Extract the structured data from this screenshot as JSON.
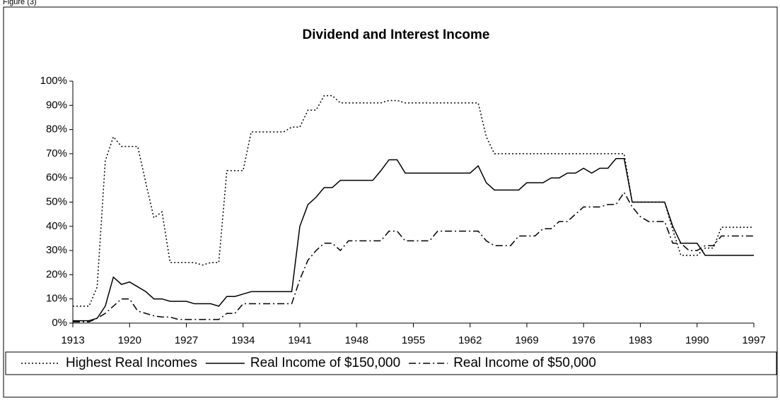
{
  "chart_data": {
    "type": "line",
    "figure_label": "Figure (3)",
    "title": "Dividend and Interest Income",
    "x": [
      1913,
      1914,
      1915,
      1916,
      1917,
      1918,
      1919,
      1920,
      1921,
      1922,
      1923,
      1924,
      1925,
      1926,
      1927,
      1928,
      1929,
      1930,
      1931,
      1932,
      1933,
      1934,
      1935,
      1936,
      1937,
      1938,
      1939,
      1940,
      1941,
      1942,
      1943,
      1944,
      1945,
      1946,
      1947,
      1948,
      1949,
      1950,
      1951,
      1952,
      1953,
      1954,
      1955,
      1956,
      1957,
      1958,
      1959,
      1960,
      1961,
      1962,
      1963,
      1964,
      1965,
      1966,
      1967,
      1968,
      1969,
      1970,
      1971,
      1972,
      1973,
      1974,
      1975,
      1976,
      1977,
      1978,
      1979,
      1980,
      1981,
      1982,
      1983,
      1984,
      1985,
      1986,
      1987,
      1988,
      1989,
      1990,
      1991,
      1992,
      1993,
      1994,
      1995,
      1996,
      1997
    ],
    "series": [
      {
        "name": "Highest Real Incomes",
        "color": "#000000",
        "line_style": "dotted",
        "values": [
          7,
          7,
          7,
          15,
          67,
          77,
          73,
          73,
          73,
          58,
          43.5,
          46,
          25,
          25,
          25,
          25,
          24,
          25,
          25,
          63,
          63,
          63,
          79,
          79,
          79,
          79,
          79,
          81,
          81,
          88,
          88,
          94,
          94,
          91,
          91,
          91,
          91,
          91,
          91,
          92,
          92,
          91,
          91,
          91,
          91,
          91,
          91,
          91,
          91,
          91,
          91,
          77,
          70,
          70,
          70,
          70,
          70,
          70,
          70,
          70,
          70,
          70,
          70,
          70,
          70,
          70,
          70,
          70,
          70,
          50,
          50,
          50,
          50,
          50,
          38.5,
          28,
          28,
          28,
          31,
          31,
          39.6,
          39.6,
          39.6,
          39.6,
          39.6
        ]
      },
      {
        "name": "Real Income of $150,000",
        "color": "#000000",
        "line_style": "solid",
        "values": [
          1,
          1,
          1,
          2,
          7,
          19,
          16,
          17,
          15,
          13,
          10,
          10,
          9,
          9,
          9,
          8,
          8,
          8,
          7,
          11,
          11,
          12,
          13,
          13,
          13,
          13,
          13,
          13,
          40,
          49,
          52,
          56,
          56,
          59,
          59,
          59,
          59,
          59,
          63,
          67.5,
          67.5,
          62,
          62,
          62,
          62,
          62,
          62,
          62,
          62,
          62,
          65,
          58,
          55,
          55,
          55,
          55,
          58,
          58,
          58,
          60,
          60,
          62,
          62,
          64,
          62,
          64,
          64,
          68,
          68,
          50,
          50,
          50,
          50,
          50,
          40,
          33,
          33,
          33,
          28,
          28,
          28,
          28,
          28,
          28,
          28
        ]
      },
      {
        "name": "Real Income of $50,000",
        "color": "#000000",
        "line_style": "dash-dot",
        "values": [
          0.5,
          0.5,
          0.5,
          2,
          4,
          7,
          10,
          10,
          5,
          4,
          3,
          2.5,
          2.5,
          1.5,
          1.5,
          1.5,
          1.5,
          1.5,
          1.5,
          4,
          4,
          8,
          8,
          8,
          8,
          8,
          8,
          8,
          18,
          26,
          30,
          33,
          33,
          30,
          34,
          34,
          34,
          34,
          34,
          38,
          38,
          34,
          34,
          34,
          34,
          38,
          38,
          38,
          38,
          38,
          38,
          34,
          32,
          32,
          32,
          36,
          36,
          36,
          39,
          39,
          42,
          42,
          45,
          48,
          48,
          48,
          49,
          49,
          54,
          48,
          44,
          42,
          42,
          42,
          33,
          33,
          30,
          30,
          32,
          32,
          36,
          36,
          36,
          36,
          36
        ]
      }
    ],
    "xlim": [
      1913,
      1997
    ],
    "xticks": [
      1913,
      1920,
      1927,
      1934,
      1941,
      1948,
      1955,
      1962,
      1969,
      1976,
      1983,
      1990,
      1997
    ],
    "ylim": [
      0,
      100
    ],
    "yticks": [
      {
        "value": 0,
        "label": "0%"
      },
      {
        "value": 10,
        "label": "10%"
      },
      {
        "value": 20,
        "label": "20%"
      },
      {
        "value": 30,
        "label": "30%"
      },
      {
        "value": 40,
        "label": "40%"
      },
      {
        "value": 50,
        "label": "50%"
      },
      {
        "value": 60,
        "label": "60%"
      },
      {
        "value": 70,
        "label": "70%"
      },
      {
        "value": 80,
        "label": "80%"
      },
      {
        "value": 90,
        "label": "90%"
      },
      {
        "value": 100,
        "label": "100%"
      }
    ],
    "legend": "bottom"
  }
}
